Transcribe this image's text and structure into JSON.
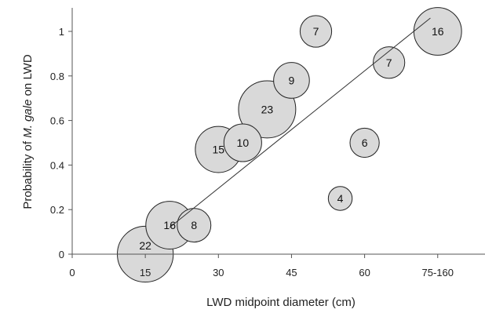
{
  "chart_data": {
    "type": "scatter",
    "title": "",
    "xlabel": "LWD midpoint diameter (cm)",
    "ylabel_parts": [
      "Probability of ",
      "M. gale",
      " on LWD"
    ],
    "xlim": [
      0,
      89
    ],
    "ylim": [
      0,
      1.1
    ],
    "x_ticks": [
      {
        "value": 0,
        "label": "0"
      },
      {
        "value": 15,
        "label": "15"
      },
      {
        "value": 30,
        "label": "30"
      },
      {
        "value": 45,
        "label": "45"
      },
      {
        "value": 60,
        "label": "60"
      },
      {
        "value": 75,
        "label": "75-160"
      }
    ],
    "y_ticks": [
      {
        "value": 0,
        "label": "0"
      },
      {
        "value": 0.2,
        "label": "0.2"
      },
      {
        "value": 0.4,
        "label": "0.4"
      },
      {
        "value": 0.6,
        "label": "0.6"
      },
      {
        "value": 0.8,
        "label": "0.8"
      },
      {
        "value": 1,
        "label": "1"
      }
    ],
    "points": [
      {
        "x": 15,
        "y": 0.0,
        "n": 22,
        "label": "22"
      },
      {
        "x": 20,
        "y": 0.13,
        "n": 16,
        "label": "16"
      },
      {
        "x": 25,
        "y": 0.13,
        "n": 8,
        "label": "8"
      },
      {
        "x": 30,
        "y": 0.47,
        "n": 15,
        "label": "15"
      },
      {
        "x": 35,
        "y": 0.5,
        "n": 10,
        "label": "10"
      },
      {
        "x": 40,
        "y": 0.65,
        "n": 23,
        "label": "23"
      },
      {
        "x": 45,
        "y": 0.78,
        "n": 9,
        "label": "9"
      },
      {
        "x": 50,
        "y": 1.0,
        "n": 7,
        "label": "7"
      },
      {
        "x": 55,
        "y": 0.25,
        "n": 4,
        "label": "4"
      },
      {
        "x": 60,
        "y": 0.5,
        "n": 6,
        "label": "6"
      },
      {
        "x": 65,
        "y": 0.86,
        "n": 7,
        "label": "7"
      },
      {
        "x": 75,
        "y": 1.0,
        "n": 16,
        "label": "16"
      }
    ],
    "trend_line": {
      "x": [
        20,
        73.5
      ],
      "y": [
        0.12,
        1.06
      ]
    },
    "grid": false,
    "bubble_fill": "#d9d9d9",
    "bubble_stroke": "#222222",
    "axis_color": "#555555"
  }
}
